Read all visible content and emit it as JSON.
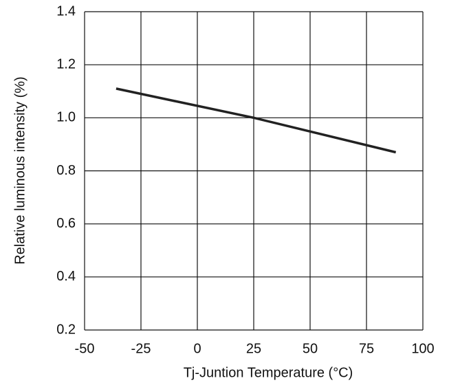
{
  "chart_data": {
    "type": "line",
    "xlabel": "Tj-Juntion Temperature (°C)",
    "ylabel": "Relative luminous intensity (%)",
    "x": [
      -36,
      25,
      88
    ],
    "series": [
      {
        "color": "#222222",
        "values": [
          1.11,
          1.0,
          0.87
        ]
      }
    ],
    "xlim": [
      -50,
      100
    ],
    "xticks": [
      -50,
      -25,
      0,
      25,
      50,
      75,
      100
    ],
    "ylim": [
      0.2,
      1.4
    ],
    "yticks": [
      0.2,
      0.4,
      0.6,
      0.8,
      {
        "value": 1,
        "label": "1.0"
      },
      1.2,
      1.4
    ],
    "grid": true
  }
}
